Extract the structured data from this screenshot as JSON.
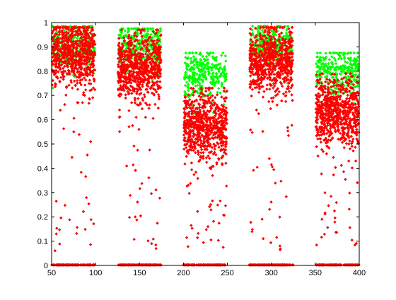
{
  "chart_data": {
    "type": "scatter",
    "title": "",
    "xlabel": "",
    "ylabel": "",
    "xlim": [
      50,
      400
    ],
    "ylim": [
      0,
      1
    ],
    "x_ticks": [
      50,
      100,
      150,
      200,
      250,
      300,
      350,
      400
    ],
    "y_ticks": [
      0,
      0.1,
      0.2,
      0.3,
      0.4,
      0.5,
      0.6,
      0.7,
      0.8,
      0.9,
      1
    ],
    "y_tick_labels": [
      "0",
      "0.1",
      "0.2",
      "0.3",
      "0.4",
      "0.5",
      "0.6",
      "0.7",
      "0.8",
      "0.9",
      "1"
    ],
    "grid": false,
    "legend": null,
    "clusters": [
      {
        "x_range": [
          50,
          100
        ],
        "green_y_center": 0.905,
        "red_y_center": 0.87,
        "red_y_min": 0.05,
        "zero_band": true
      },
      {
        "x_range": [
          125,
          175
        ],
        "green_y_center": 0.895,
        "red_y_center": 0.81,
        "red_y_min": 0.06,
        "zero_band": true
      },
      {
        "x_range": [
          200,
          250
        ],
        "green_y_center": 0.795,
        "red_y_center": 0.57,
        "red_y_min": 0.07,
        "zero_band": true
      },
      {
        "x_range": [
          275,
          325
        ],
        "green_y_center": 0.905,
        "red_y_center": 0.84,
        "red_y_min": 0.06,
        "zero_band": true
      },
      {
        "x_range": [
          350,
          400
        ],
        "green_y_center": 0.795,
        "red_y_center": 0.63,
        "red_y_min": 0.08,
        "zero_band": true
      }
    ],
    "series": [
      {
        "color": "#00ff00",
        "marker": "diamond"
      },
      {
        "color": "#ff0000",
        "marker": "diamond"
      }
    ]
  }
}
